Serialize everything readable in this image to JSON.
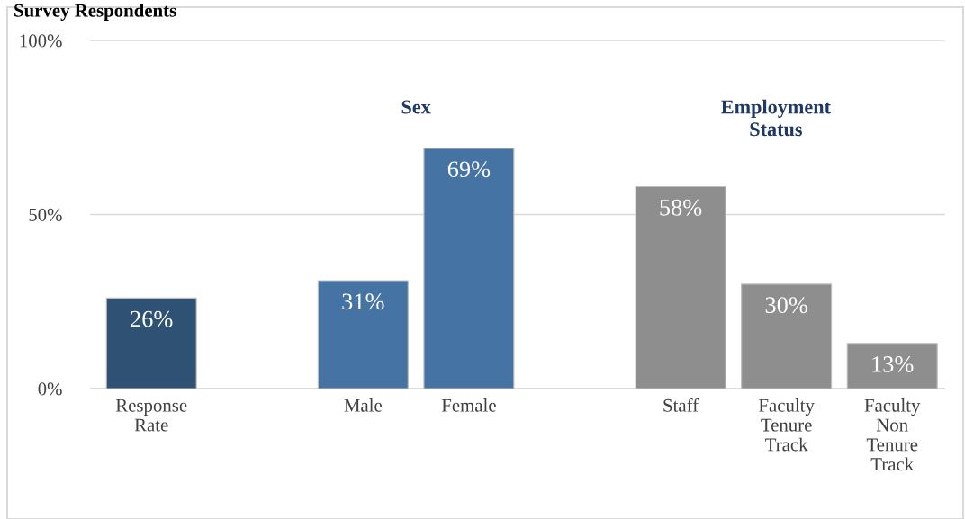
{
  "chart_data": {
    "type": "bar",
    "title": "Survey Respondents",
    "categories": [
      "Response Rate",
      null,
      "Male",
      "Female",
      null,
      "Staff",
      "Faculty Tenure Track",
      "Faculty Non Tenure Track"
    ],
    "values": [
      26,
      null,
      31,
      69,
      null,
      58,
      30,
      13
    ],
    "colors": [
      "#2f5274",
      null,
      "#4573a3",
      "#4573a3",
      null,
      "#8e8e8e",
      "#8e8e8e",
      "#8e8e8e"
    ],
    "value_labels": [
      "26%",
      null,
      "31%",
      "69%",
      null,
      "58%",
      "30%",
      "13%"
    ],
    "annotations": [
      "Sex",
      "Employment Status"
    ],
    "ylim": [
      0,
      100
    ],
    "yticks": [
      {
        "value": 0,
        "label": "0%"
      },
      {
        "value": 50,
        "label": "50%"
      },
      {
        "value": 100,
        "label": "100%"
      }
    ],
    "grid": "y",
    "legend": false
  }
}
